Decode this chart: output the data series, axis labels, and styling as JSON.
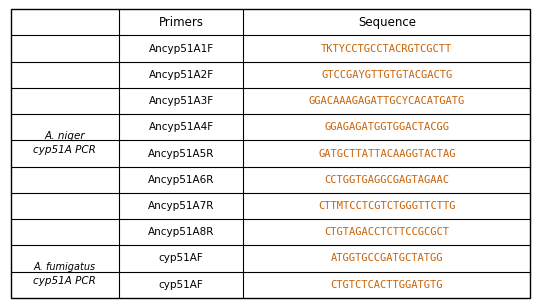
{
  "header": [
    "Primers",
    "Sequence"
  ],
  "group1_label_line1": "A. niger",
  "group1_label_line2": "cyp51A PCR",
  "group1_italic": true,
  "group2_label_line1": "A. fumigatus",
  "group2_label_line2": "cyp51A PCR",
  "group2_italic": true,
  "rows_group1": [
    [
      "Ancyp51A1F",
      "TKTYCCTGCCTACRGTCGCTT"
    ],
    [
      "Ancyp51A2F",
      "GTCCGAYGTTGTGTACGACTG"
    ],
    [
      "Ancyp51A3F",
      "GGACAAAGAGATTGCYCACATGATG"
    ],
    [
      "Ancyp51A4F",
      "GGAGAGATGGTGGACTACGG"
    ],
    [
      "Ancyp51A5R",
      "GATGCTTATTACAAGGTACTAG"
    ],
    [
      "Ancyp51A6R",
      "CCTGGTGAGGCGAGTAGAAC"
    ],
    [
      "Ancyp51A7R",
      "CTTMTCCTCGTCTGGGTTCTTG"
    ],
    [
      "Ancyp51A8R",
      "CTGTAGACCTCTTCCGCGCT"
    ]
  ],
  "rows_group2": [
    [
      "cyp51AF",
      "ATGGTGCCGATGCTATGG"
    ],
    [
      "cyp51AF",
      "CTGTCTCACTTGGATGTG"
    ]
  ],
  "primer_color": "#000000",
  "sequence_color": "#c8640a",
  "header_color": "#000000",
  "label_color": "#000000",
  "bg_color": "#ffffff",
  "grid_color": "#000000",
  "font_size": 7.5,
  "header_font_size": 8.5
}
